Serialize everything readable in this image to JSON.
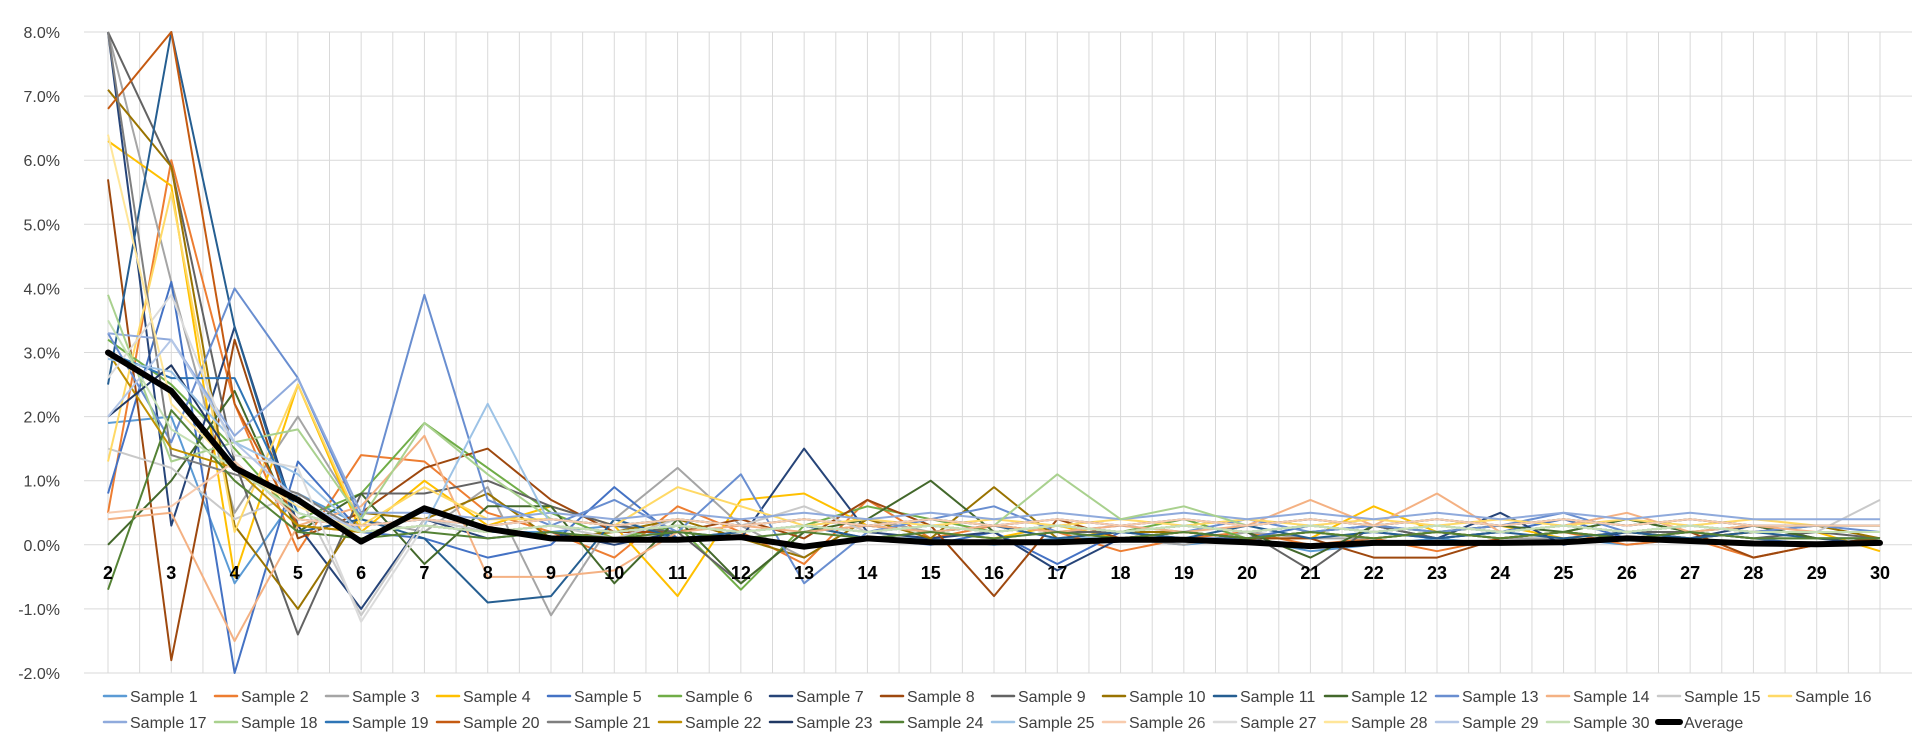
{
  "chart_data": {
    "type": "line",
    "title": "",
    "xlabel": "",
    "ylabel": "",
    "ylim": [
      -0.02,
      0.08
    ],
    "y_ticks": [
      "-2.0%",
      "-1.0%",
      "0.0%",
      "1.0%",
      "2.0%",
      "3.0%",
      "4.0%",
      "5.0%",
      "6.0%",
      "7.0%",
      "8.0%"
    ],
    "x": [
      2,
      3,
      4,
      5,
      6,
      7,
      8,
      9,
      10,
      11,
      12,
      13,
      14,
      15,
      16,
      17,
      18,
      19,
      20,
      21,
      22,
      23,
      24,
      25,
      26,
      27,
      28,
      29,
      30
    ],
    "grid": "on",
    "legend_position": "bottom",
    "series": [
      {
        "name": "Sample 1",
        "color": "#5b9bd5",
        "values": [
          0.019,
          0.02,
          -0.006,
          0.008,
          0.003,
          0.004,
          0.002,
          0.002,
          0.003,
          0.001,
          0.001,
          0.0,
          0.001,
          0.001,
          0.0,
          0.001,
          0.001,
          0.0,
          0.001,
          -0.001,
          0.0,
          0.001,
          0.0,
          0.001,
          0.0,
          0.001,
          0.0,
          0.0,
          0.001
        ]
      },
      {
        "name": "Sample 2",
        "color": "#ed7d31",
        "values": [
          0.005,
          0.06,
          0.022,
          -0.001,
          0.014,
          0.013,
          0.005,
          0.002,
          -0.002,
          0.006,
          0.002,
          -0.003,
          0.007,
          0.001,
          0.003,
          0.002,
          -0.001,
          0.001,
          0.002,
          0.0,
          0.001,
          -0.001,
          0.001,
          0.002,
          0.0,
          0.001,
          -0.002,
          0.0,
          0.001
        ]
      },
      {
        "name": "Sample 3",
        "color": "#a5a5a5",
        "values": [
          0.085,
          0.041,
          0.005,
          0.02,
          0.004,
          0.002,
          0.009,
          -0.011,
          0.004,
          0.012,
          0.003,
          -0.002,
          0.004,
          0.002,
          0.001,
          0.002,
          0.001,
          0.0,
          0.002,
          0.001,
          0.001,
          0.002,
          0.001,
          0.001,
          0.002,
          0.001,
          0.002,
          0.002,
          0.002
        ]
      },
      {
        "name": "Sample 4",
        "color": "#ffc000",
        "values": [
          0.063,
          0.056,
          -0.005,
          0.025,
          0.002,
          0.01,
          0.003,
          0.006,
          0.003,
          -0.008,
          0.007,
          0.008,
          0.003,
          0.002,
          0.001,
          0.003,
          0.001,
          0.002,
          0.001,
          0.001,
          0.006,
          0.002,
          0.003,
          0.001,
          0.002,
          0.001,
          0.002,
          0.002,
          -0.001
        ]
      },
      {
        "name": "Sample 5",
        "color": "#4472c4",
        "values": [
          0.008,
          0.041,
          -0.02,
          0.013,
          0.002,
          0.001,
          -0.002,
          0.0,
          0.009,
          0.001,
          0.002,
          0.003,
          0.001,
          0.0,
          0.002,
          -0.003,
          0.002,
          0.001,
          0.001,
          0.003,
          0.002,
          0.001,
          0.002,
          0.004,
          0.001,
          0.002,
          0.001,
          0.0,
          0.001
        ]
      },
      {
        "name": "Sample 6",
        "color": "#70ad47",
        "values": [
          0.032,
          0.025,
          0.015,
          0.004,
          0.008,
          0.019,
          0.012,
          0.005,
          0.001,
          0.003,
          -0.007,
          0.003,
          0.006,
          0.004,
          0.002,
          0.003,
          0.002,
          0.004,
          0.001,
          0.002,
          0.001,
          0.002,
          0.001,
          0.002,
          0.004,
          0.002,
          0.001,
          0.001,
          0.001
        ]
      },
      {
        "name": "Sample 7",
        "color": "#264478",
        "values": [
          0.098,
          0.003,
          0.034,
          0.003,
          -0.01,
          0.004,
          0.001,
          0.002,
          0.0,
          0.002,
          0.001,
          0.015,
          0.002,
          0.001,
          0.002,
          -0.004,
          0.001,
          0.002,
          0.001,
          0.002,
          0.003,
          0.001,
          0.005,
          0.0,
          0.002,
          0.001,
          0.003,
          0.001,
          0.0
        ]
      },
      {
        "name": "Sample 8",
        "color": "#9e480e",
        "values": [
          0.057,
          -0.018,
          0.032,
          0.001,
          0.005,
          0.012,
          0.015,
          0.007,
          0.002,
          0.002,
          0.004,
          0.001,
          0.007,
          0.003,
          -0.008,
          0.004,
          0.001,
          0.002,
          0.001,
          0.001,
          -0.002,
          -0.002,
          0.001,
          0.002,
          0.001,
          0.002,
          -0.002,
          0.0,
          0.001
        ]
      },
      {
        "name": "Sample 9",
        "color": "#636363",
        "values": [
          0.092,
          0.059,
          0.013,
          -0.014,
          0.008,
          0.008,
          0.01,
          0.006,
          0.003,
          0.002,
          -0.006,
          0.002,
          0.003,
          0.002,
          0.003,
          0.002,
          0.002,
          0.003,
          0.002,
          -0.004,
          0.003,
          0.001,
          0.002,
          0.003,
          0.002,
          0.002,
          0.001,
          0.002,
          0.001
        ]
      },
      {
        "name": "Sample 10",
        "color": "#997300",
        "values": [
          0.071,
          0.059,
          0.003,
          -0.01,
          0.005,
          0.004,
          0.008,
          0.001,
          0.002,
          0.004,
          0.001,
          -0.002,
          0.004,
          0.001,
          0.009,
          0.001,
          0.002,
          0.002,
          0.001,
          0.002,
          0.001,
          0.002,
          0.001,
          0.002,
          0.001,
          0.001,
          0.002,
          0.003,
          0.001
        ]
      },
      {
        "name": "Sample 11",
        "color": "#255e91",
        "values": [
          0.025,
          0.08,
          0.034,
          0.002,
          0.004,
          0.001,
          -0.009,
          -0.008,
          0.004,
          0.001,
          0.002,
          0.003,
          0.001,
          0.002,
          0.003,
          0.001,
          0.002,
          0.001,
          0.003,
          0.001,
          0.002,
          0.001,
          0.002,
          0.001,
          0.002,
          0.001,
          0.002,
          0.001,
          0.001
        ]
      },
      {
        "name": "Sample 12",
        "color": "#43682b",
        "values": [
          0.0,
          0.01,
          0.024,
          0.002,
          0.008,
          -0.003,
          0.006,
          0.006,
          -0.006,
          0.004,
          -0.006,
          0.002,
          0.004,
          0.01,
          0.002,
          0.003,
          0.002,
          0.003,
          0.002,
          -0.002,
          0.003,
          0.002,
          0.003,
          0.002,
          0.004,
          0.002,
          0.003,
          0.001,
          0.001
        ]
      },
      {
        "name": "Sample 13",
        "color": "#698ed0",
        "values": [
          0.033,
          0.016,
          0.04,
          0.026,
          0.004,
          0.039,
          0.007,
          0.003,
          0.007,
          0.002,
          0.011,
          -0.006,
          0.002,
          0.004,
          0.006,
          0.002,
          0.003,
          0.002,
          0.004,
          0.002,
          0.003,
          0.002,
          0.003,
          0.005,
          0.002,
          0.003,
          0.002,
          0.003,
          0.002
        ]
      },
      {
        "name": "Sample 14",
        "color": "#f4b183",
        "values": [
          0.004,
          0.005,
          -0.015,
          0.003,
          0.006,
          0.017,
          -0.005,
          -0.005,
          -0.004,
          0.002,
          0.003,
          0.002,
          0.003,
          0.002,
          0.003,
          0.002,
          0.003,
          0.002,
          0.003,
          0.007,
          0.003,
          0.008,
          0.002,
          0.003,
          0.005,
          0.002,
          0.003,
          0.002,
          0.002
        ]
      },
      {
        "name": "Sample 15",
        "color": "#c9c9c9",
        "values": [
          0.015,
          0.012,
          0.004,
          0.008,
          -0.011,
          0.004,
          0.002,
          0.003,
          0.001,
          0.004,
          0.003,
          0.006,
          0.002,
          0.003,
          0.002,
          0.003,
          0.002,
          0.003,
          0.002,
          0.003,
          0.002,
          0.003,
          0.002,
          0.003,
          0.002,
          0.003,
          0.002,
          0.002,
          0.007
        ]
      },
      {
        "name": "Sample 16",
        "color": "#ffd966",
        "values": [
          0.013,
          0.055,
          0.002,
          0.025,
          0.003,
          0.009,
          0.004,
          0.004,
          0.003,
          0.009,
          0.006,
          0.003,
          0.004,
          0.003,
          0.004,
          0.003,
          0.004,
          0.003,
          0.004,
          0.003,
          0.004,
          0.003,
          0.004,
          0.003,
          0.004,
          0.003,
          0.004,
          0.003,
          0.003
        ]
      },
      {
        "name": "Sample 17",
        "color": "#8faadc",
        "values": [
          0.033,
          0.032,
          0.017,
          0.026,
          0.005,
          0.005,
          0.004,
          0.005,
          0.004,
          0.005,
          0.004,
          0.005,
          0.004,
          0.005,
          0.004,
          0.005,
          0.004,
          0.005,
          0.004,
          0.005,
          0.004,
          0.005,
          0.004,
          0.005,
          0.004,
          0.005,
          0.004,
          0.004,
          0.004
        ]
      },
      {
        "name": "Sample 18",
        "color": "#a9d18e",
        "values": [
          0.039,
          0.013,
          0.016,
          0.018,
          0.004,
          0.019,
          0.011,
          0.004,
          0.003,
          0.004,
          0.003,
          0.004,
          0.003,
          0.004,
          0.003,
          0.011,
          0.004,
          0.006,
          0.003,
          0.004,
          0.003,
          0.004,
          0.003,
          0.004,
          0.003,
          0.004,
          0.003,
          0.003,
          0.003
        ]
      },
      {
        "name": "Sample 19",
        "color": "#2e75b6",
        "values": [
          0.03,
          0.026,
          0.026,
          0.005,
          0.002,
          0.003,
          0.002,
          0.003,
          0.002,
          0.003,
          0.002,
          0.003,
          0.002,
          0.003,
          0.002,
          0.003,
          0.002,
          0.003,
          0.002,
          0.003,
          0.002,
          0.003,
          0.002,
          0.003,
          0.002,
          0.003,
          0.002,
          0.002,
          0.002
        ]
      },
      {
        "name": "Sample 20",
        "color": "#c55a11",
        "values": [
          0.068,
          0.08,
          0.022,
          0.003,
          0.002,
          0.003,
          0.002,
          0.003,
          0.002,
          0.003,
          0.002,
          0.003,
          0.002,
          0.003,
          0.002,
          0.003,
          0.002,
          0.003,
          0.002,
          0.003,
          0.002,
          0.003,
          0.002,
          0.003,
          0.002,
          0.003,
          0.002,
          0.002,
          0.002
        ]
      },
      {
        "name": "Sample 21",
        "color": "#7f7f7f",
        "values": [
          0.082,
          0.014,
          0.011,
          0.008,
          0.002,
          0.003,
          0.002,
          0.003,
          0.002,
          0.003,
          0.002,
          0.003,
          0.002,
          0.003,
          0.002,
          0.003,
          0.002,
          0.003,
          0.002,
          0.003,
          0.002,
          0.003,
          0.002,
          0.003,
          0.002,
          0.003,
          0.002,
          0.002,
          0.002
        ]
      },
      {
        "name": "Sample 22",
        "color": "#bf9000",
        "values": [
          0.03,
          0.015,
          0.012,
          0.003,
          0.002,
          0.003,
          0.002,
          0.003,
          0.002,
          0.003,
          0.002,
          0.003,
          0.002,
          0.003,
          0.002,
          0.003,
          0.002,
          0.003,
          0.002,
          0.003,
          0.002,
          0.003,
          0.002,
          0.003,
          0.002,
          0.003,
          0.002,
          0.002,
          0.002
        ]
      },
      {
        "name": "Sample 23",
        "color": "#203864",
        "values": [
          0.02,
          0.028,
          0.013,
          0.004,
          0.003,
          0.004,
          0.003,
          0.004,
          0.003,
          0.004,
          0.003,
          0.004,
          0.003,
          0.004,
          0.003,
          0.004,
          0.003,
          0.004,
          0.003,
          0.004,
          0.003,
          0.004,
          0.003,
          0.004,
          0.003,
          0.004,
          0.003,
          0.003,
          0.003
        ]
      },
      {
        "name": "Sample 24",
        "color": "#548235",
        "values": [
          -0.007,
          0.021,
          0.01,
          0.002,
          0.001,
          0.002,
          0.001,
          0.002,
          0.001,
          0.002,
          0.001,
          0.002,
          0.001,
          0.002,
          0.001,
          0.002,
          0.001,
          0.002,
          0.001,
          0.002,
          0.001,
          0.002,
          0.001,
          0.002,
          0.001,
          0.002,
          0.001,
          0.001,
          0.001
        ]
      },
      {
        "name": "Sample 25",
        "color": "#9dc3e6",
        "values": [
          0.029,
          0.027,
          0.016,
          0.011,
          0.002,
          0.003,
          0.022,
          0.003,
          0.002,
          0.003,
          0.002,
          0.003,
          0.002,
          0.003,
          0.002,
          0.003,
          0.002,
          0.003,
          0.002,
          0.003,
          0.002,
          0.003,
          0.002,
          0.003,
          0.002,
          0.003,
          0.002,
          0.002,
          0.002
        ]
      },
      {
        "name": "Sample 26",
        "color": "#f8cbad",
        "values": [
          0.005,
          0.006,
          0.013,
          0.004,
          0.003,
          0.004,
          0.003,
          0.004,
          0.003,
          0.004,
          0.003,
          0.004,
          0.003,
          0.004,
          0.003,
          0.004,
          0.003,
          0.004,
          0.003,
          0.004,
          0.003,
          0.004,
          0.003,
          0.004,
          0.003,
          0.004,
          0.003,
          0.003,
          0.003
        ]
      },
      {
        "name": "Sample 27",
        "color": "#dbdbdb",
        "values": [
          0.026,
          0.039,
          0.014,
          0.012,
          -0.012,
          0.003,
          0.002,
          0.003,
          0.002,
          0.003,
          0.002,
          0.003,
          0.002,
          0.003,
          0.002,
          0.003,
          0.002,
          0.003,
          0.002,
          0.003,
          0.002,
          0.003,
          0.002,
          0.003,
          0.002,
          0.003,
          0.002,
          0.002,
          0.002
        ]
      },
      {
        "name": "Sample 28",
        "color": "#ffe699",
        "values": [
          0.064,
          0.022,
          0.012,
          0.006,
          0.002,
          0.003,
          0.002,
          0.003,
          0.002,
          0.003,
          0.002,
          0.003,
          0.002,
          0.003,
          0.002,
          0.003,
          0.002,
          0.003,
          0.002,
          0.003,
          0.002,
          0.003,
          0.002,
          0.003,
          0.002,
          0.003,
          0.002,
          0.002,
          0.002
        ]
      },
      {
        "name": "Sample 29",
        "color": "#b4c7e7",
        "values": [
          0.02,
          0.032,
          0.016,
          0.007,
          0.002,
          0.003,
          0.002,
          0.003,
          0.002,
          0.003,
          0.002,
          0.003,
          0.002,
          0.003,
          0.002,
          0.003,
          0.002,
          0.003,
          0.002,
          0.003,
          0.002,
          0.003,
          0.002,
          0.003,
          0.002,
          0.003,
          0.002,
          0.002,
          0.002
        ]
      },
      {
        "name": "Sample 30",
        "color": "#c5e0b4",
        "values": [
          0.035,
          0.018,
          0.012,
          0.005,
          0.002,
          0.003,
          0.002,
          0.003,
          0.002,
          0.003,
          0.002,
          0.003,
          0.002,
          0.003,
          0.002,
          0.003,
          0.002,
          0.003,
          0.002,
          0.003,
          0.002,
          0.003,
          0.002,
          0.003,
          0.002,
          0.003,
          0.002,
          0.002,
          0.002
        ]
      },
      {
        "name": "Average",
        "color": "#000000",
        "values": [
          0.03,
          0.024,
          0.012,
          0.007,
          0.0005,
          0.0057,
          0.0025,
          0.001,
          0.0008,
          0.0008,
          0.0012,
          -0.0003,
          0.001,
          0.0004,
          0.0004,
          0.0004,
          0.0008,
          0.0008,
          0.0004,
          -0.0002,
          0.0003,
          0.0003,
          0.0003,
          0.0004,
          0.001,
          0.0006,
          0.0002,
          0.0001,
          0.0003
        ]
      }
    ]
  }
}
